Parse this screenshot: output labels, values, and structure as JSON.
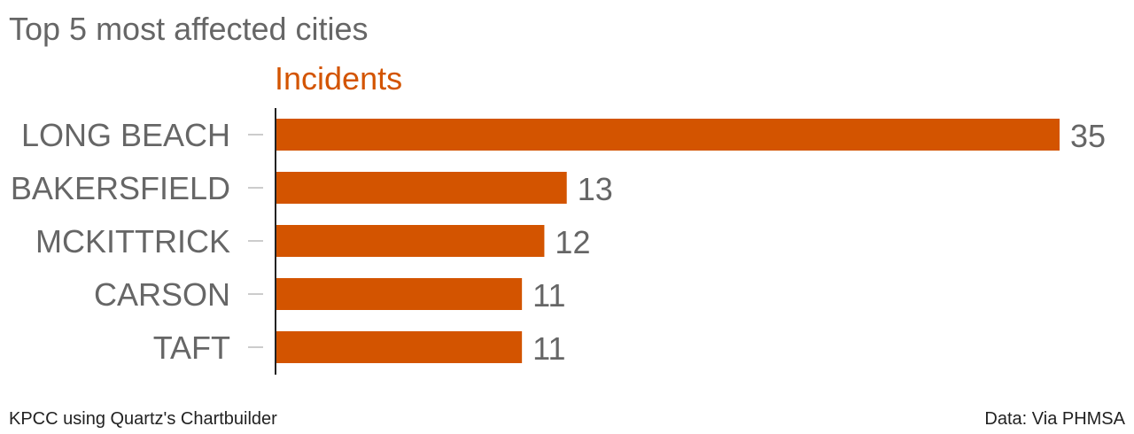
{
  "chart_data": {
    "type": "bar",
    "orientation": "horizontal",
    "title": "Top 5 most affected cities",
    "series": [
      {
        "name": "Incidents",
        "color": "#d35400",
        "values": [
          35,
          13,
          12,
          11,
          11
        ]
      }
    ],
    "categories": [
      "LONG BEACH",
      "BAKERSFIELD",
      "MCKITTRICK",
      "CARSON",
      "TAFT"
    ],
    "xlim": [
      0,
      35
    ],
    "grid": false,
    "data_labels": true
  },
  "footer": {
    "credit": "KPCC using Quartz's Chartbuilder",
    "source": "Data: Via PHMSA"
  },
  "colors": {
    "bar": "#d35400",
    "text": "#666666",
    "axis": "#222222"
  }
}
